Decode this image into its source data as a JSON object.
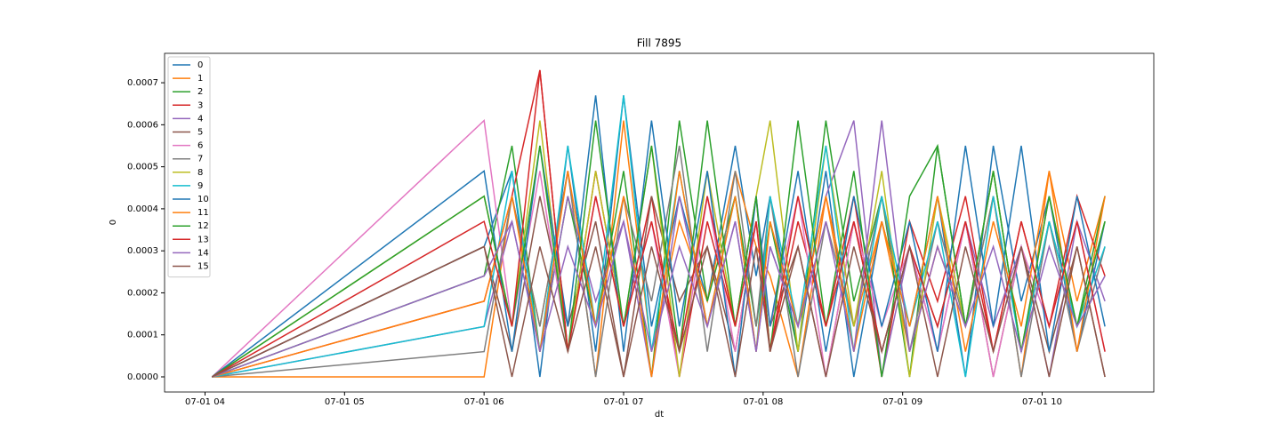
{
  "chart_data": {
    "type": "line",
    "title": "Fill 7895",
    "x_label": "dt",
    "y_label": "0",
    "x": [
      4.05,
      6.0,
      6.2,
      6.4,
      6.6,
      6.8,
      7.0,
      7.2,
      7.4,
      7.6,
      7.8,
      7.95,
      8.05,
      8.25,
      8.45,
      8.65,
      8.85,
      9.05,
      9.25,
      9.45,
      9.65,
      9.85,
      10.05,
      10.25,
      10.45
    ],
    "xlim": [
      3.71,
      10.8
    ],
    "xticks": [
      {
        "value": 4,
        "label": "07-01 04"
      },
      {
        "value": 5,
        "label": "07-01 05"
      },
      {
        "value": 6,
        "label": "07-01 06"
      },
      {
        "value": 7,
        "label": "07-01 07"
      },
      {
        "value": 8,
        "label": "07-01 08"
      },
      {
        "value": 9,
        "label": "07-01 09"
      },
      {
        "value": 10,
        "label": "07-01 10"
      }
    ],
    "ylim": [
      -3.6e-05,
      0.00077
    ],
    "yticks": [
      {
        "value": 0,
        "label": "0.0000"
      },
      {
        "value": 0.0001,
        "label": "0.0001"
      },
      {
        "value": 0.0002,
        "label": "0.0002"
      },
      {
        "value": 0.0003,
        "label": "0.0003"
      },
      {
        "value": 0.0004,
        "label": "0.0004"
      },
      {
        "value": 0.0005,
        "label": "0.0005"
      },
      {
        "value": 0.0006,
        "label": "0.0006"
      },
      {
        "value": 0.0007,
        "label": "0.0007"
      }
    ],
    "grid": false,
    "legend": "upper left",
    "series": [
      {
        "name": "0",
        "color": "#1f77b4",
        "values": [
          0,
          0.00031,
          0.00049,
          0,
          0.00055,
          6e-05,
          0.00067,
          0.00012,
          0.00043,
          0.00018,
          0.00055,
          0.00024,
          0.00043,
          6e-05,
          0.00049,
          0,
          0.00037,
          0.00012,
          0.00043,
          0,
          0.00055,
          0.00018,
          0.00043,
          6e-05,
          0.00037
        ]
      },
      {
        "name": "1",
        "color": "#ff7f0e",
        "values": [
          0,
          0,
          0.00043,
          0.00012,
          0.00049,
          0,
          0.00061,
          6e-05,
          0.00037,
          0.00018,
          0.00049,
          0.00031,
          0.00024,
          0,
          0.00043,
          0.00012,
          0.00037,
          6e-05,
          0.00031,
          0.00012,
          0.00043,
          0,
          0.00049,
          0.00018,
          0.00043
        ]
      },
      {
        "name": "2",
        "color": "#2ca02c",
        "values": [
          0,
          0.00024,
          0.00055,
          6e-05,
          0.00043,
          0.00012,
          0.00049,
          0,
          0.00061,
          0.00018,
          0.00043,
          0.00012,
          0.00037,
          6e-05,
          0.00061,
          0.00018,
          0.00043,
          0,
          0.00055,
          0.00012,
          0.00049,
          6e-05,
          0.00037,
          0.00012,
          0.00043
        ]
      },
      {
        "name": "3",
        "color": "#d62728",
        "values": [
          0,
          0.00018,
          0.00043,
          0.00073,
          6e-05,
          0.00049,
          0.00012,
          0.00043,
          0,
          0.00037,
          0.00012,
          0.00043,
          6e-05,
          0.00037,
          0.00012,
          0.00043,
          0,
          0.00037,
          0.00018,
          0.00043,
          6e-05,
          0.00037,
          0.00012,
          0.00043,
          0.00024
        ]
      },
      {
        "name": "4",
        "color": "#9467bd",
        "values": [
          0,
          0.00012,
          0.00037,
          6e-05,
          0.00043,
          0.00018,
          0.00037,
          0,
          0.00043,
          0.00012,
          0.00037,
          6e-05,
          0.00031,
          0.00012,
          0.00043,
          0.00061,
          0,
          0.00031,
          6e-05,
          0.00037,
          0.00012,
          0.00031,
          0,
          0.00037,
          0.00018
        ]
      },
      {
        "name": "5",
        "color": "#8c564b",
        "values": [
          0,
          0.00031,
          6e-05,
          0.00043,
          0.00012,
          0.00037,
          0,
          0.00043,
          0.00018,
          0.00031,
          6e-05,
          0.00037,
          0.00012,
          0.00031,
          0,
          0.00037,
          6e-05,
          0.00031,
          0.00012,
          0.00037,
          0,
          0.00031,
          6e-05,
          0.00031,
          0
        ]
      },
      {
        "name": "6",
        "color": "#e377c2",
        "values": [
          0,
          0.00061,
          0.00012,
          0.00049,
          6e-05,
          0.00043,
          0.00012,
          0.00037,
          0,
          0.00043,
          6e-05,
          0.00037,
          0.00012,
          0.00043,
          0,
          0.00037,
          0.00012,
          0.00031,
          6e-05,
          0.00037,
          0,
          0.00031,
          0.00012,
          0.00037,
          6e-05
        ]
      },
      {
        "name": "7",
        "color": "#7f7f7f",
        "values": [
          0,
          6e-05,
          0.00043,
          0.00012,
          0.00049,
          0,
          0.00043,
          0.00018,
          0.00055,
          6e-05,
          0.00049,
          0.00012,
          0.00043,
          0,
          0.00037,
          0.00012,
          0.00043,
          6e-05,
          0.00037,
          0.00012,
          0.00043,
          0,
          0.00037,
          6e-05,
          0.00031
        ]
      },
      {
        "name": "8",
        "color": "#bcbd22",
        "values": [
          0,
          0.00043,
          0.00012,
          0.00061,
          6e-05,
          0.00049,
          0.00012,
          0.00055,
          0,
          0.00049,
          0.00012,
          0.00043,
          0.00061,
          6e-05,
          0.00055,
          0.00012,
          0.00049,
          0,
          0.00043,
          0.00012,
          0.00049,
          6e-05,
          0.00043,
          0.00012,
          0.00037
        ]
      },
      {
        "name": "9",
        "color": "#17becf",
        "values": [
          0,
          0.00012,
          0.00049,
          6e-05,
          0.00055,
          0.00012,
          0.00067,
          6e-05,
          0.00049,
          0.00012,
          0.00043,
          6e-05,
          0.00043,
          0.00012,
          0.00055,
          6e-05,
          0.00043,
          0.00012,
          0.00037,
          0,
          0.00043,
          6e-05,
          0.00037,
          0.00012,
          0.00031
        ]
      },
      {
        "name": "10",
        "color": "#1f77b4",
        "values": [
          0,
          0.00049,
          6e-05,
          0.00055,
          0.00012,
          0.00067,
          6e-05,
          0.00061,
          0.00012,
          0.00049,
          0,
          0.00043,
          0.00012,
          0.00049,
          6e-05,
          0.00043,
          0.00012,
          0.00037,
          6e-05,
          0.00055,
          0.00012,
          0.00055,
          6e-05,
          0.00043,
          0.00012
        ]
      },
      {
        "name": "11",
        "color": "#ff7f0e",
        "values": [
          0,
          0.00018,
          0.00043,
          6e-05,
          0.00049,
          0.00012,
          0.00043,
          0,
          0.00049,
          0.00012,
          0.00043,
          6e-05,
          0.00037,
          0.00012,
          0.00043,
          6e-05,
          0.00037,
          0.00012,
          0.00043,
          6e-05,
          0.00037,
          0.00012,
          0.00049,
          6e-05,
          0.00043
        ]
      },
      {
        "name": "12",
        "color": "#2ca02c",
        "values": [
          0,
          0.00043,
          0.00012,
          0.00055,
          6e-05,
          0.00061,
          0.00012,
          0.00055,
          6e-05,
          0.00061,
          0.00012,
          0.00043,
          6e-05,
          0.00061,
          0.00012,
          0.00049,
          0,
          0.00043,
          0.00055,
          0.00012,
          0.00049,
          6e-05,
          0.00043,
          0.00012,
          0.00037
        ]
      },
      {
        "name": "13",
        "color": "#d62728",
        "values": [
          0,
          0.00037,
          0.00012,
          0.00073,
          6e-05,
          0.00043,
          0.00012,
          0.00037,
          6e-05,
          0.00043,
          0.00012,
          0.00037,
          6e-05,
          0.00043,
          0.00012,
          0.00037,
          6e-05,
          0.00031,
          0.00012,
          0.00037,
          6e-05,
          0.00037,
          0.00012,
          0.00037,
          6e-05
        ]
      },
      {
        "name": "14",
        "color": "#9467bd",
        "values": [
          0,
          0.00024,
          0.00037,
          6e-05,
          0.00031,
          0.00012,
          0.00037,
          6e-05,
          0.00031,
          0.00012,
          0.00037,
          6e-05,
          0.00031,
          0.00012,
          0.00037,
          6e-05,
          0.00061,
          6e-05,
          0.00031,
          0.00012,
          0.00031,
          6e-05,
          0.00031,
          0.00012,
          0.00024
        ]
      },
      {
        "name": "15",
        "color": "#8c564b",
        "values": [
          0,
          0.00031,
          0,
          0.00031,
          6e-05,
          0.00031,
          0,
          0.00031,
          6e-05,
          0.00031,
          0,
          0.00031,
          6e-05,
          0.00031,
          0,
          0.00031,
          6e-05,
          0.00031,
          0,
          0.00031,
          6e-05,
          0.00031,
          0,
          0.00031,
          0
        ]
      }
    ]
  }
}
